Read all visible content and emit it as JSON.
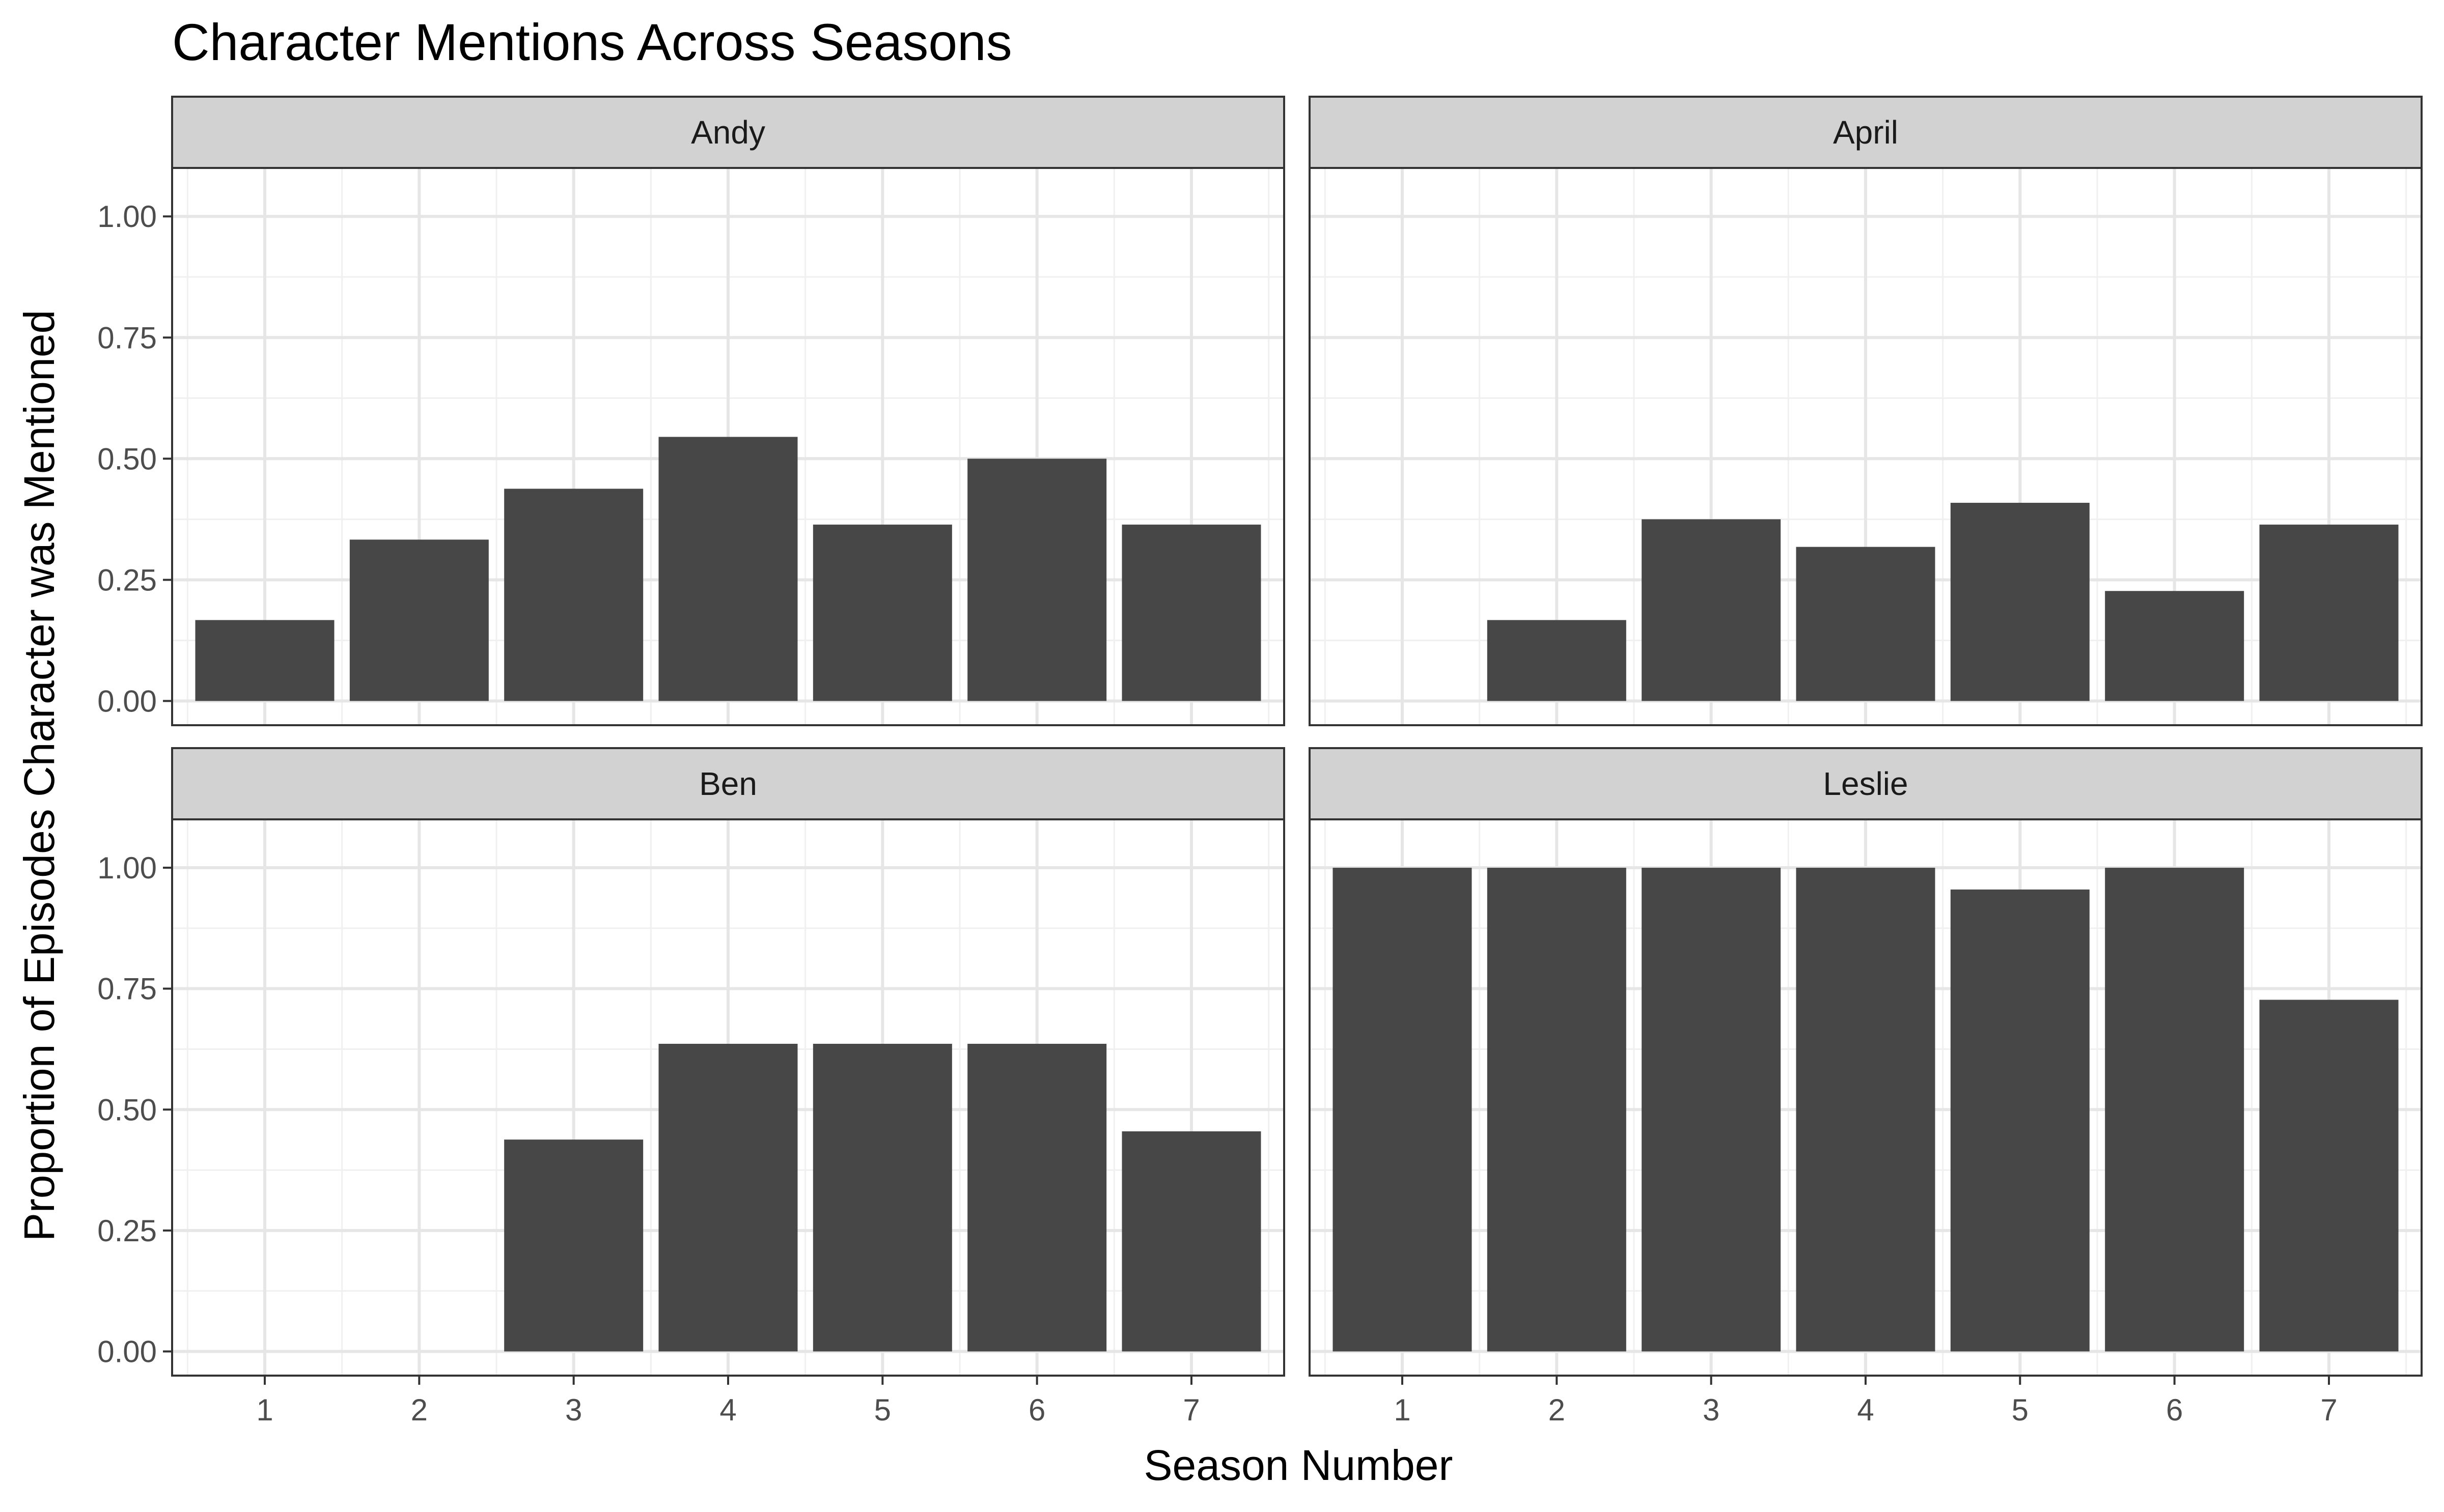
{
  "chart_data": {
    "type": "bar",
    "title": "Character Mentions Across Seasons",
    "xlabel": "Season Number",
    "ylabel": "Proportion of Episodes Character was Mentioned",
    "categories": [
      "1",
      "2",
      "3",
      "4",
      "5",
      "6",
      "7"
    ],
    "ylim": [
      0,
      1.05
    ],
    "yticks": [
      "0.00",
      "0.25",
      "0.50",
      "0.75",
      "1.00"
    ],
    "grid": true,
    "bar_color": "#474747",
    "strip_color": "#d2d2d2",
    "facets": [
      {
        "name": "Andy",
        "values": [
          0.167,
          0.333,
          0.438,
          0.545,
          0.364,
          0.5,
          0.364
        ]
      },
      {
        "name": "April",
        "values": [
          0.0,
          0.167,
          0.375,
          0.318,
          0.409,
          0.227,
          0.364
        ]
      },
      {
        "name": "Ben",
        "values": [
          0.0,
          0.0,
          0.438,
          0.636,
          0.636,
          0.636,
          0.455
        ]
      },
      {
        "name": "Leslie",
        "values": [
          1.0,
          1.0,
          1.0,
          1.0,
          0.955,
          1.0,
          0.727
        ]
      }
    ]
  }
}
